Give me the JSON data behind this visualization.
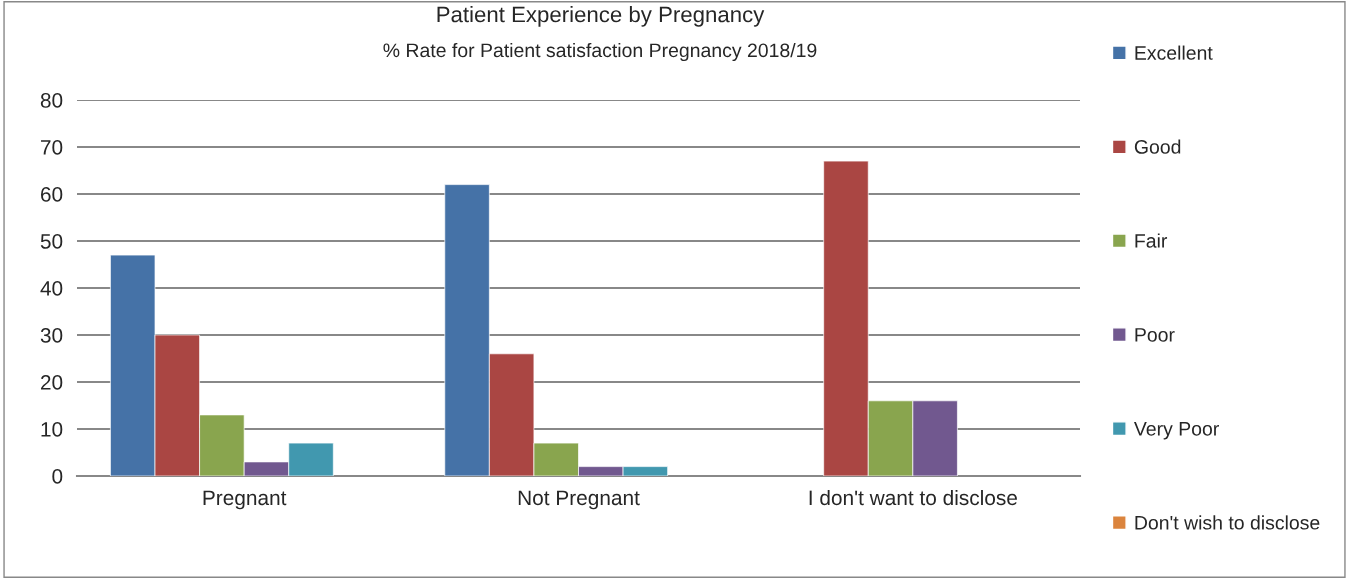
{
  "chart_data": {
    "type": "bar",
    "title": "Patient Experience by Pregnancy",
    "subtitle": "% Rate for Patient satisfaction Pregnancy 2018/19",
    "categories": [
      "Pregnant",
      "Not Pregnant",
      "I don't want to disclose"
    ],
    "series": [
      {
        "name": "Excellent",
        "color": "#4572a7",
        "values": [
          47,
          62,
          null
        ]
      },
      {
        "name": "Good",
        "color": "#aa4643",
        "values": [
          30,
          26,
          67
        ]
      },
      {
        "name": "Fair",
        "color": "#89a54e",
        "values": [
          13,
          7,
          16
        ]
      },
      {
        "name": "Poor",
        "color": "#71588f",
        "values": [
          3,
          2,
          16
        ]
      },
      {
        "name": "Very Poor",
        "color": "#4198af",
        "values": [
          7,
          2,
          null
        ]
      },
      {
        "name": "Don't wish to disclose",
        "color": "#db843d",
        "values": [
          null,
          null,
          null
        ]
      }
    ],
    "ylim": [
      0,
      80
    ],
    "yticks": [
      0,
      10,
      20,
      30,
      40,
      50,
      60,
      70,
      80
    ],
    "grid": "y",
    "legend": "right"
  }
}
